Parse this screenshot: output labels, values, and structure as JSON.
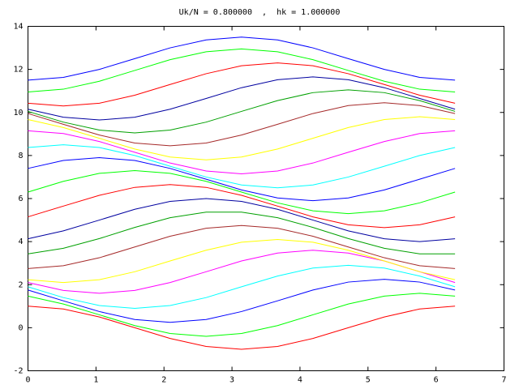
{
  "chart_data": {
    "type": "line",
    "title": "Uk/N = 0.800000  ,  hk = 1.000000",
    "x": [
      0,
      0.52,
      1.05,
      1.57,
      2.09,
      2.62,
      3.14,
      3.67,
      4.19,
      4.71,
      5.24,
      5.76,
      6.28
    ],
    "xlim": [
      0,
      7
    ],
    "xticks": [
      0,
      1,
      2,
      3,
      4,
      5,
      6,
      7
    ],
    "ylim": [
      -2,
      14
    ],
    "yticks": [
      -2,
      0,
      2,
      4,
      6,
      8,
      10,
      12,
      14
    ],
    "series": [
      {
        "color": "#ff0000",
        "values": [
          1,
          0.87,
          0.5,
          0,
          -0.5,
          -0.87,
          -1,
          -0.87,
          -0.5,
          0,
          0.5,
          0.87,
          1
        ]
      },
      {
        "color": "#00ff00",
        "values": [
          1.47,
          1.1,
          0.6,
          0.1,
          -0.27,
          -0.4,
          -0.27,
          0.1,
          0.6,
          1.1,
          1.47,
          1.6,
          1.47
        ]
      },
      {
        "color": "#0000ff",
        "values": [
          1.75,
          1.25,
          0.75,
          0.38,
          0.25,
          0.38,
          0.75,
          1.25,
          1.75,
          2.12,
          2.25,
          2.12,
          1.75
        ]
      },
      {
        "color": "#00ffff",
        "values": [
          1.9,
          1.4,
          1.03,
          0.9,
          1.03,
          1.4,
          1.9,
          2.4,
          2.77,
          2.9,
          2.77,
          2.4,
          1.9
        ]
      },
      {
        "color": "#ff00ff",
        "values": [
          2.1,
          1.73,
          1.6,
          1.73,
          2.1,
          2.6,
          3.1,
          3.47,
          3.6,
          3.47,
          3.1,
          2.6,
          2.1
        ]
      },
      {
        "color": "#ffff00",
        "values": [
          2.23,
          2.1,
          2.23,
          2.6,
          3.1,
          3.6,
          3.97,
          4.1,
          3.97,
          3.6,
          3.1,
          2.6,
          2.23
        ]
      },
      {
        "color": "#a52a2a",
        "values": [
          2.75,
          2.88,
          3.25,
          3.75,
          4.25,
          4.62,
          4.75,
          4.62,
          4.25,
          3.75,
          3.25,
          2.88,
          2.75
        ]
      },
      {
        "color": "#00a000",
        "values": [
          3.43,
          3.69,
          4.14,
          4.66,
          5.11,
          5.37,
          5.37,
          5.11,
          4.66,
          4.14,
          3.69,
          3.43,
          3.43
        ]
      },
      {
        "color": "#0000a0",
        "values": [
          4.13,
          4.5,
          5,
          5.5,
          5.87,
          6,
          5.87,
          5.5,
          5,
          4.5,
          4.13,
          4,
          4.13
        ]
      },
      {
        "color": "#ff0000",
        "values": [
          5.15,
          5.65,
          6.15,
          6.52,
          6.65,
          6.52,
          6.15,
          5.65,
          5.15,
          4.78,
          4.65,
          4.78,
          5.15
        ]
      },
      {
        "color": "#00ff00",
        "values": [
          6.3,
          6.8,
          7.17,
          7.3,
          7.17,
          6.8,
          6.3,
          5.8,
          5.43,
          5.3,
          5.43,
          5.8,
          6.3
        ]
      },
      {
        "color": "#0000ff",
        "values": [
          7.4,
          7.77,
          7.9,
          7.77,
          7.4,
          6.9,
          6.4,
          6.03,
          5.9,
          6.03,
          6.4,
          6.9,
          7.4
        ]
      },
      {
        "color": "#00ffff",
        "values": [
          8.37,
          8.5,
          8.37,
          8,
          7.5,
          7,
          6.63,
          6.5,
          6.63,
          7,
          7.5,
          8,
          8.37
        ]
      },
      {
        "color": "#ff00ff",
        "values": [
          9.15,
          9.02,
          8.65,
          8.15,
          7.65,
          7.28,
          7.15,
          7.28,
          7.65,
          8.15,
          8.65,
          9.02,
          9.15
        ]
      },
      {
        "color": "#ffff00",
        "values": [
          9.67,
          9.3,
          8.8,
          8.3,
          7.93,
          7.8,
          7.93,
          8.3,
          8.8,
          9.3,
          9.67,
          9.8,
          9.67
        ]
      },
      {
        "color": "#a52a2a",
        "values": [
          9.95,
          9.45,
          8.95,
          8.58,
          8.45,
          8.58,
          8.95,
          9.45,
          9.95,
          10.32,
          10.45,
          10.32,
          9.95
        ]
      },
      {
        "color": "#00a000",
        "values": [
          10.05,
          9.55,
          9.18,
          9.05,
          9.18,
          9.55,
          10.05,
          10.55,
          10.92,
          11.05,
          10.92,
          10.55,
          10.05
        ]
      },
      {
        "color": "#0000a0",
        "values": [
          10.15,
          9.78,
          9.65,
          9.78,
          10.15,
          10.65,
          11.15,
          11.52,
          11.65,
          11.52,
          11.15,
          10.65,
          10.15
        ]
      },
      {
        "color": "#ff0000",
        "values": [
          10.43,
          10.3,
          10.43,
          10.8,
          11.3,
          11.8,
          12.17,
          12.3,
          12.17,
          11.8,
          11.3,
          10.8,
          10.43
        ]
      },
      {
        "color": "#00ff00",
        "values": [
          10.95,
          11.08,
          11.45,
          11.95,
          12.45,
          12.82,
          12.95,
          12.82,
          12.45,
          11.95,
          11.45,
          11.08,
          10.95
        ]
      },
      {
        "color": "#0000ff",
        "values": [
          11.5,
          11.63,
          12,
          12.5,
          13,
          13.37,
          13.5,
          13.37,
          13,
          12.5,
          12,
          11.63,
          11.5
        ]
      }
    ]
  }
}
